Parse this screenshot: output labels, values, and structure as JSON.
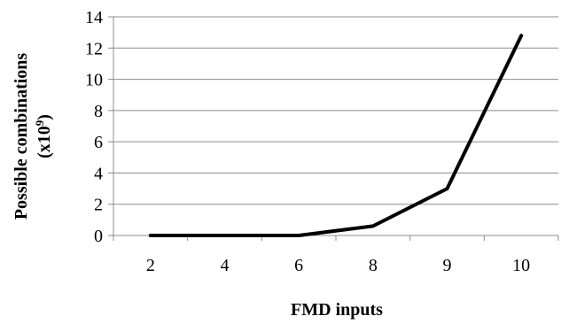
{
  "chart_data": {
    "type": "line",
    "categories": [
      "2",
      "4",
      "6",
      "8",
      "9",
      "10"
    ],
    "series": [
      {
        "values": [
          0,
          0,
          0,
          0.6,
          3.0,
          12.8
        ],
        "color": "#000000"
      }
    ],
    "xlabel": "FMD inputs",
    "ylabel": {
      "line1": "Possible combinations",
      "line2_prefix": "(x10",
      "line2_exp": "9",
      "line2_suffix": ")"
    },
    "ylim": [
      0,
      14
    ],
    "yticks": [
      "0",
      "2",
      "4",
      "6",
      "8",
      "10",
      "12",
      "14"
    ],
    "grid": true,
    "legend": "none"
  }
}
